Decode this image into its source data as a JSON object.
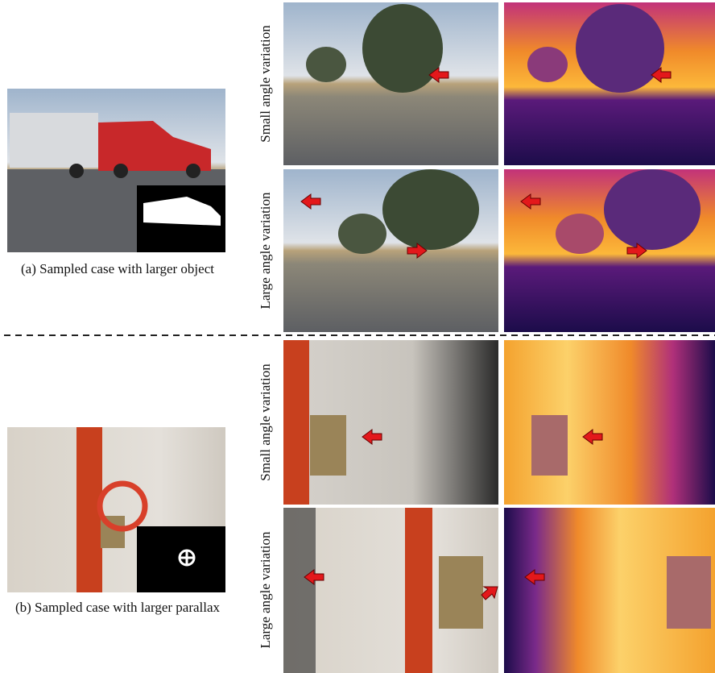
{
  "panels": [
    {
      "caption": "(a) Sampled case with larger object",
      "rows": [
        {
          "label": "Small angle variation"
        },
        {
          "label": "Large angle variation"
        }
      ]
    },
    {
      "caption": "(b) Sampled case with larger parallax",
      "rows": [
        {
          "label": "Small angle variation"
        },
        {
          "label": "Large angle variation"
        }
      ]
    }
  ]
}
